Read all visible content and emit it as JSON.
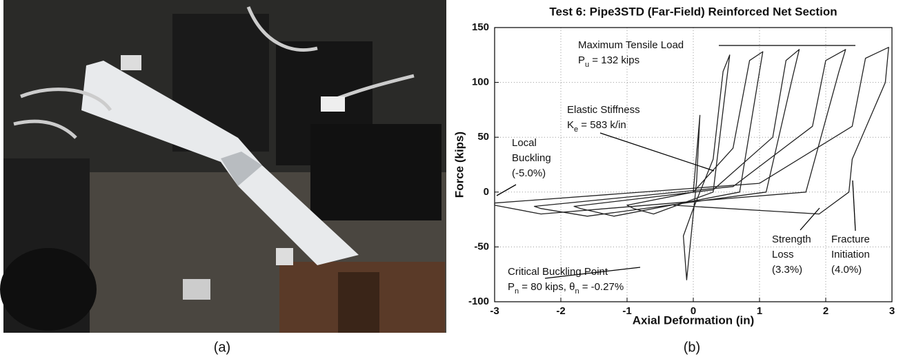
{
  "chart_data": {
    "type": "line",
    "title": "Test 6: Pipe3STD (Far-Field) Reinforced Net Section",
    "xlabel": "Axial Deformation (in)",
    "ylabel": "Force (kips)",
    "x": [
      0,
      0.1,
      0.05,
      -0.1,
      -0.15,
      0.0,
      0.3,
      0.45,
      0.55,
      0.5,
      0.3,
      -0.6,
      -0.9,
      -1.0,
      0.0,
      0.6,
      0.85,
      1.05,
      1.0,
      0.7,
      -1.2,
      -1.7,
      -1.8,
      0.3,
      1.2,
      1.4,
      1.6,
      1.5,
      1.1,
      -1.6,
      -2.3,
      -2.4,
      0.6,
      1.8,
      2.0,
      2.3,
      2.2,
      1.7,
      -2.3,
      -3.0,
      -3.0,
      1.0,
      2.4,
      2.6,
      2.95,
      2.9,
      2.4,
      2.35,
      1.9,
      -0.3
    ],
    "values": [
      0,
      70,
      10,
      -80,
      -40,
      -15,
      30,
      110,
      125,
      100,
      0,
      -20,
      -15,
      -12,
      0,
      40,
      120,
      128,
      110,
      0,
      -22,
      -15,
      -13,
      2,
      50,
      120,
      130,
      105,
      0,
      -22,
      -15,
      -13,
      5,
      60,
      120,
      130,
      110,
      0,
      -20,
      -12,
      -10,
      8,
      60,
      122,
      132,
      100,
      30,
      0,
      -20,
      -12
    ],
    "color": "#222222",
    "xlim": [
      -3,
      3
    ],
    "xticks": [
      -3,
      -2,
      -1,
      0,
      1,
      2,
      3
    ],
    "ylim": [
      -100,
      150
    ],
    "yticks": [
      -100,
      -50,
      0,
      50,
      100,
      150
    ],
    "grid": true,
    "annotations": [
      {
        "lines": [
          [
            {
              "text": "Maximum Tensile Load"
            }
          ],
          [
            {
              "text": "P"
            },
            {
              "text": "u",
              "sub": true
            },
            {
              "text": " = 132 kips"
            }
          ]
        ]
      },
      {
        "lines": [
          [
            {
              "text": "Elastic Stiffness"
            }
          ],
          [
            {
              "text": "K"
            },
            {
              "text": "e",
              "sub": true
            },
            {
              "text": " = 583 k/in"
            }
          ]
        ]
      },
      {
        "lines": [
          [
            {
              "text": "Local"
            }
          ],
          [
            {
              "text": "Buckling"
            }
          ],
          [
            {
              "text": "(-5.0%)"
            }
          ]
        ]
      },
      {
        "lines": [
          [
            {
              "text": "Strength"
            }
          ],
          [
            {
              "text": "Loss"
            }
          ],
          [
            {
              "text": "(3.3%)"
            }
          ]
        ]
      },
      {
        "lines": [
          [
            {
              "text": "Fracture"
            }
          ],
          [
            {
              "text": "Initiation"
            }
          ],
          [
            {
              "text": "(4.0%)"
            }
          ]
        ]
      },
      {
        "lines": [
          [
            {
              "text": "Critical Buckling Point"
            }
          ],
          [
            {
              "text": "P"
            },
            {
              "text": "n",
              "sub": true
            },
            {
              "text": " = 80 kips, θ"
            },
            {
              "text": "n",
              "sub": true
            },
            {
              "text": " = -0.27%"
            }
          ]
        ]
      }
    ]
  },
  "captions": [
    "(a)",
    "(b)"
  ]
}
